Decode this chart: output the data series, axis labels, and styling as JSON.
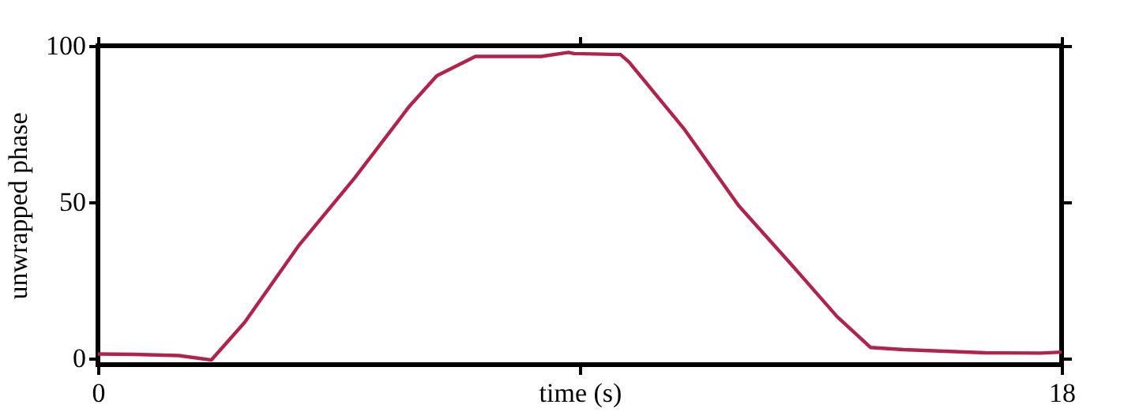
{
  "chart_data": {
    "type": "line",
    "xlabel": "time (s)",
    "ylabel": "unwrapped phase",
    "x": [
      0,
      0.68,
      1.51,
      2.12,
      2.74,
      3.76,
      4.79,
      5.82,
      6.33,
      7.05,
      8.28,
      8.79,
      8.89,
      9.76,
      9.92,
      10.94,
      11.97,
      12.99,
      13.81,
      14.43,
      15.05,
      16.58,
      17.61,
      18
    ],
    "series": [
      {
        "color": "#b0234a",
        "values": [
          1.4,
          1.3,
          0.9,
          -0.5,
          11.5,
          36.3,
          57.6,
          80.7,
          90.4,
          96.6,
          96.6,
          97.9,
          97.5,
          97.2,
          94.8,
          73.6,
          48.8,
          29.3,
          13.3,
          3.5,
          2.8,
          1.8,
          1.7,
          2.0
        ]
      }
    ],
    "xlim": [
      0,
      18
    ],
    "xticks": [
      0,
      {
        "value": 9,
        "label": null
      },
      18
    ],
    "ylim": [
      -2,
      100
    ],
    "yticks": [
      0,
      50,
      100
    ],
    "grid": false,
    "marker": "none",
    "line_style": "solid"
  }
}
